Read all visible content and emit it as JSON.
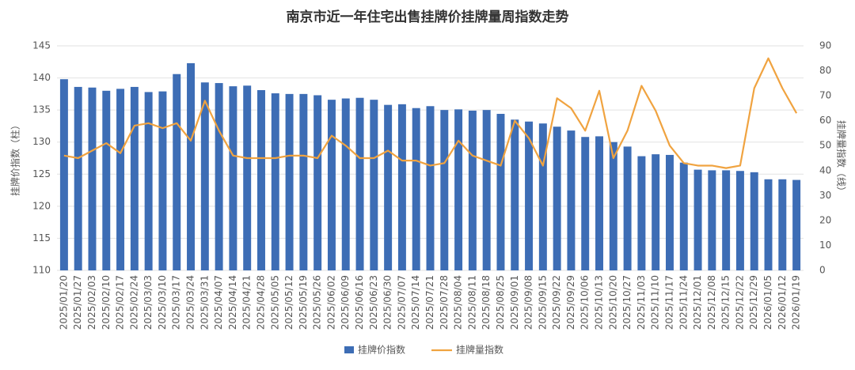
{
  "chart_data": {
    "type": "bar_line",
    "title": "南京市近一年住宅出售挂牌价挂牌量周指数走势",
    "y_label": "挂牌价指数（柱）",
    "y2_label": "挂牌量指数（线）",
    "categories": [
      "2025/01/20",
      "2025/01/27",
      "2025/02/03",
      "2025/02/10",
      "2025/02/17",
      "2025/02/24",
      "2025/03/03",
      "2025/03/10",
      "2025/03/17",
      "2025/03/24",
      "2025/03/31",
      "2025/04/07",
      "2025/04/14",
      "2025/04/21",
      "2025/04/28",
      "2025/05/05",
      "2025/05/12",
      "2025/05/19",
      "2025/05/26",
      "2025/06/02",
      "2025/06/09",
      "2025/06/16",
      "2025/06/23",
      "2025/06/30",
      "2025/07/07",
      "2025/07/14",
      "2025/07/21",
      "2025/07/28",
      "2025/08/04",
      "2025/08/11",
      "2025/08/18",
      "2025/08/25",
      "2025/09/01",
      "2025/09/08",
      "2025/09/15",
      "2025/09/22",
      "2025/09/29",
      "2025/10/06",
      "2025/10/13",
      "2025/10/20",
      "2025/10/27",
      "2025/11/03",
      "2025/11/10",
      "2025/11/17",
      "2025/11/24",
      "2025/12/01",
      "2025/12/08",
      "2025/12/15",
      "2025/12/22",
      "2025/12/29",
      "2026/01/05",
      "2026/01/12",
      "2026/01/19"
    ],
    "series": [
      {
        "name": "挂牌价指数",
        "color": "#3d6db5",
        "kind": "bar",
        "values": [
          139.8,
          138.6,
          138.5,
          138.0,
          138.3,
          138.6,
          137.8,
          137.9,
          140.6,
          142.3,
          139.3,
          139.2,
          138.7,
          138.8,
          138.1,
          137.6,
          137.5,
          137.5,
          137.3,
          136.6,
          136.8,
          136.9,
          136.6,
          135.8,
          135.9,
          135.3,
          135.6,
          135.0,
          135.1,
          134.9,
          135.0,
          134.4,
          133.5,
          133.2,
          132.9,
          132.4,
          131.8,
          130.8,
          130.9,
          130.0,
          129.3,
          127.8,
          128.1,
          128.0,
          126.8,
          125.7,
          125.6,
          125.6,
          125.5,
          125.3,
          124.2,
          124.2,
          124.1
        ]
      },
      {
        "name": "挂牌量指数",
        "color": "#f0a340",
        "kind": "line",
        "axis": "y2",
        "values": [
          46,
          45,
          48,
          51,
          47,
          58,
          59,
          57,
          59,
          52,
          68,
          56,
          46,
          45,
          45,
          45,
          46,
          46,
          45,
          54,
          50,
          45,
          45,
          48,
          44,
          44,
          42,
          43,
          52,
          46,
          44,
          42,
          60,
          53,
          42,
          69,
          65,
          56,
          72,
          45,
          56,
          74,
          64,
          50,
          43,
          42,
          42,
          41,
          42,
          73,
          85,
          73,
          63
        ]
      }
    ],
    "ylim": [
      110,
      145
    ],
    "yticks": [
      110,
      115,
      120,
      125,
      130,
      135,
      140,
      145
    ],
    "y2lim": [
      0,
      90
    ],
    "y2ticks": [
      0,
      10,
      20,
      30,
      40,
      50,
      60,
      70,
      80,
      90
    ],
    "grid": true
  }
}
